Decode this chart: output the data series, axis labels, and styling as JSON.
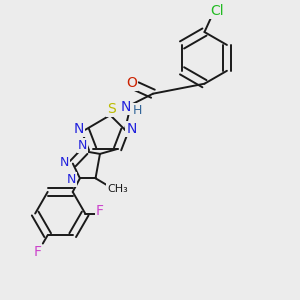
{
  "bg_color": "#ececec",
  "bond_color": "#1a1a1a",
  "bond_width": 1.4,
  "dbo": 0.013,
  "figsize": [
    3.0,
    3.0
  ],
  "dpi": 100,
  "colors": {
    "C": "#1a1a1a",
    "N": "#2222dd",
    "O": "#cc2200",
    "S": "#bbbb00",
    "F": "#cc44cc",
    "Cl": "#22bb22",
    "NH": "#336699",
    "H": "#336699"
  }
}
